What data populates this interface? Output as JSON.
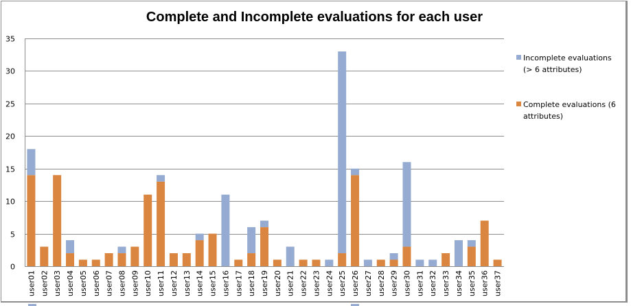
{
  "chart_data": {
    "type": "bar",
    "stacked": true,
    "title": "Complete and Incomplete evaluations for each user",
    "xlabel": "",
    "ylabel": "",
    "ylim": [
      0,
      35
    ],
    "yticks": [
      0,
      5,
      10,
      15,
      20,
      25,
      30,
      35
    ],
    "grid": true,
    "legend_position": "right",
    "categories": [
      "user01",
      "user02",
      "user03",
      "user04",
      "user05",
      "user06",
      "user07",
      "user08",
      "user09",
      "user10",
      "user11",
      "user12",
      "user13",
      "user14",
      "user15",
      "user16",
      "user17",
      "user18",
      "user19",
      "user20",
      "user21",
      "user22",
      "user23",
      "user24",
      "user25",
      "user26",
      "user27",
      "user28",
      "user29",
      "user30",
      "user31",
      "user32",
      "user33",
      "user34",
      "user35",
      "user36",
      "user37"
    ],
    "series": [
      {
        "name": "Complete evaluations (6 attributes)",
        "color": "#da8640",
        "values": [
          14,
          3,
          14,
          2,
          1,
          1,
          2,
          2,
          3,
          11,
          13,
          2,
          2,
          4,
          5,
          0,
          1,
          2,
          6,
          1,
          0,
          1,
          1,
          0,
          2,
          14,
          0,
          1,
          1,
          3,
          0,
          0,
          2,
          0,
          3,
          7,
          1
        ]
      },
      {
        "name": "Incomplete evaluations (> 6 attributes)",
        "color": "#95abd1",
        "values": [
          4,
          0,
          0,
          2,
          0,
          0,
          0,
          1,
          0,
          0,
          1,
          0,
          0,
          1,
          0,
          11,
          0,
          4,
          1,
          0,
          3,
          0,
          0,
          1,
          31,
          1,
          1,
          0,
          1,
          13,
          1,
          1,
          0,
          4,
          1,
          0,
          0
        ]
      }
    ]
  },
  "legend": {
    "items": [
      {
        "label": "Incomplete evaluations (> 6 attributes)",
        "color": "#95abd1"
      },
      {
        "label": "Complete evaluations (6 attributes)",
        "color": "#da8640"
      }
    ]
  }
}
